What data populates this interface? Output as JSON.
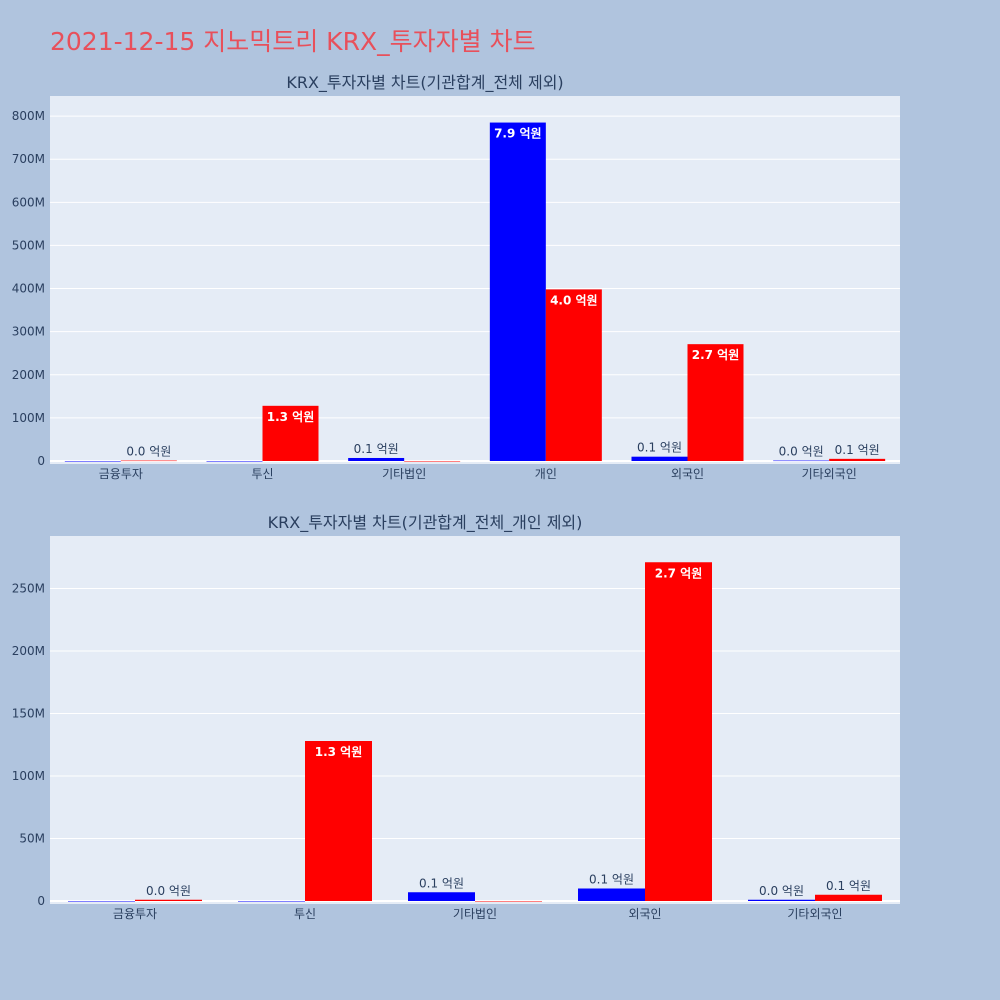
{
  "page_title": "2021-12-15 지노믹트리 KRX_투자자별 차트",
  "colors": {
    "background": "#b0c4de",
    "plot_bg": "#e5ecf6",
    "blue": "#0000ff",
    "red": "#ff0000",
    "title": "#e8505b"
  },
  "chart_data": [
    {
      "type": "bar",
      "title": "KRX_투자자별 차트(기관합계_전체 제외)",
      "categories": [
        "금융투자",
        "투신",
        "기타법인",
        "개인",
        "외국인",
        "기타외국인"
      ],
      "series": [
        {
          "color": "#0000ff",
          "values": [
            0,
            0,
            7000000,
            785000000,
            10000000,
            1000000
          ],
          "labels": [
            "",
            "",
            "0.1 억원",
            "7.9 억원",
            "0.1 억원",
            "0.0 억원"
          ]
        },
        {
          "color": "#ff0000",
          "values": [
            1000000,
            128000000,
            0,
            398000000,
            271000000,
            5000000
          ],
          "labels": [
            "0.0 억원",
            "1.3 억원",
            "",
            "4.0 억원",
            "2.7 억원",
            "0.1 억원"
          ]
        }
      ],
      "ylim": [
        0,
        835000000
      ],
      "yticks": [
        0,
        100000000,
        200000000,
        300000000,
        400000000,
        500000000,
        600000000,
        700000000,
        800000000
      ],
      "ytick_labels": [
        "0",
        "100M",
        "200M",
        "300M",
        "400M",
        "500M",
        "600M",
        "700M",
        "800M"
      ],
      "grid": true
    },
    {
      "type": "bar",
      "title": "KRX_투자자별 차트(기관합계_전체_개인 제외)",
      "categories": [
        "금융투자",
        "투신",
        "기타법인",
        "외국인",
        "기타외국인"
      ],
      "series": [
        {
          "color": "#0000ff",
          "values": [
            0,
            0,
            7000000,
            10000000,
            1000000
          ],
          "labels": [
            "",
            "",
            "0.1 억원",
            "0.1 억원",
            "0.0 억원"
          ]
        },
        {
          "color": "#ff0000",
          "values": [
            1000000,
            128000000,
            0,
            271000000,
            5000000
          ],
          "labels": [
            "0.0 억원",
            "1.3 억원",
            "",
            "2.7 억원",
            "0.1 억원"
          ]
        }
      ],
      "ylim": [
        0,
        288000000
      ],
      "yticks": [
        0,
        50000000,
        100000000,
        150000000,
        200000000,
        250000000
      ],
      "ytick_labels": [
        "0",
        "50M",
        "100M",
        "150M",
        "200M",
        "250M"
      ],
      "grid": true
    }
  ]
}
